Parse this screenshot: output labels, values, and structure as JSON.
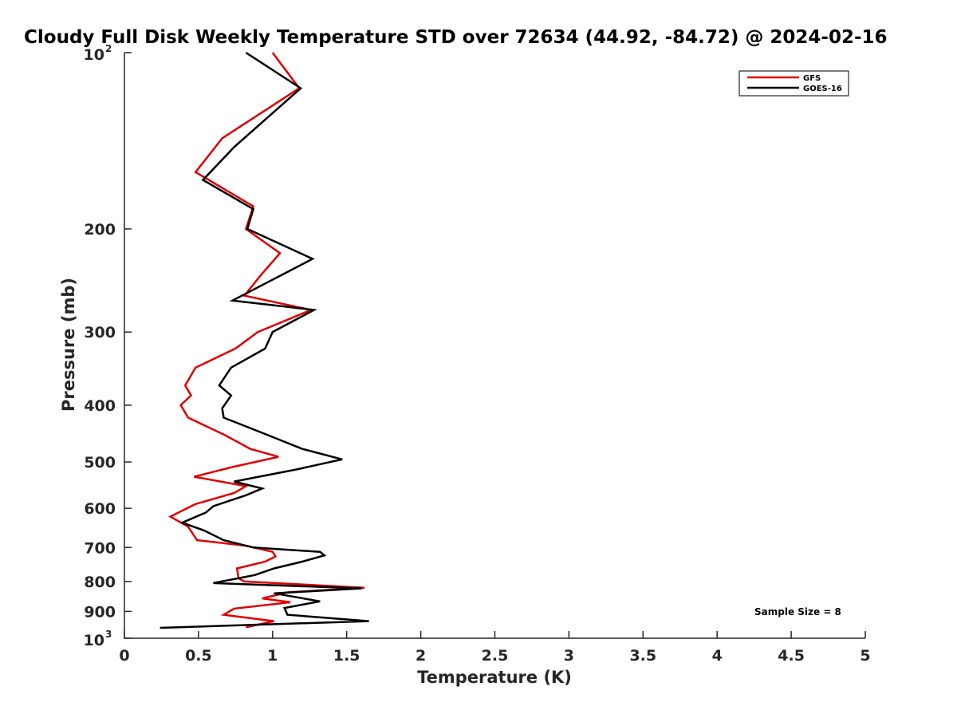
{
  "chart_data": {
    "type": "line",
    "title": "Cloudy Full Disk Weekly Temperature STD over 72634 (44.92, -84.72) @ 2024-02-16",
    "xlabel": "Temperature (K)",
    "ylabel": "Pressure (mb)",
    "xlim": [
      0,
      5
    ],
    "ylim": [
      100,
      1000
    ],
    "y_scale": "log",
    "y_reversed": true,
    "grid": false,
    "legend_position": "top-right",
    "x_ticks": [
      "0",
      "0.5",
      "1",
      "1.5",
      "2",
      "2.5",
      "3",
      "3.5",
      "4",
      "4.5",
      "5"
    ],
    "y_ticks": [
      {
        "value": 100,
        "base": "10",
        "exp": "2"
      },
      {
        "value": 200,
        "label": "200"
      },
      {
        "value": 300,
        "label": "300"
      },
      {
        "value": 400,
        "label": "400"
      },
      {
        "value": 500,
        "label": "500"
      },
      {
        "value": 600,
        "label": "600"
      },
      {
        "value": 700,
        "label": "700"
      },
      {
        "value": 800,
        "label": "800"
      },
      {
        "value": 900,
        "label": "900"
      },
      {
        "value": 1000,
        "base": "10",
        "exp": "3"
      }
    ],
    "annotation": "Sample Size = 8",
    "series": [
      {
        "name": "GFS",
        "color": "#e00000",
        "points": [
          [
            1.0,
            100
          ],
          [
            1.18,
            115
          ],
          [
            0.66,
            140
          ],
          [
            0.48,
            160
          ],
          [
            0.87,
            183
          ],
          [
            0.82,
            200
          ],
          [
            1.05,
            220
          ],
          [
            0.92,
            240
          ],
          [
            0.81,
            260
          ],
          [
            1.26,
            275
          ],
          [
            0.9,
            300
          ],
          [
            0.75,
            320
          ],
          [
            0.48,
            345
          ],
          [
            0.41,
            370
          ],
          [
            0.45,
            385
          ],
          [
            0.38,
            400
          ],
          [
            0.43,
            420
          ],
          [
            0.68,
            450
          ],
          [
            0.85,
            475
          ],
          [
            1.04,
            490
          ],
          [
            0.73,
            510
          ],
          [
            0.47,
            530
          ],
          [
            0.82,
            550
          ],
          [
            0.74,
            565
          ],
          [
            0.48,
            590
          ],
          [
            0.31,
            620
          ],
          [
            0.43,
            645
          ],
          [
            0.49,
            680
          ],
          [
            0.82,
            695
          ],
          [
            1.0,
            712
          ],
          [
            1.02,
            725
          ],
          [
            0.95,
            740
          ],
          [
            0.76,
            760
          ],
          [
            0.77,
            790
          ],
          [
            0.81,
            800
          ],
          [
            1.62,
            820
          ],
          [
            1.1,
            835
          ],
          [
            0.93,
            855
          ],
          [
            1.12,
            868
          ],
          [
            0.74,
            890
          ],
          [
            0.67,
            912
          ],
          [
            1.01,
            935
          ],
          [
            0.82,
            958
          ]
        ]
      },
      {
        "name": "GOES-16",
        "color": "#000000",
        "points": [
          [
            0.82,
            100
          ],
          [
            1.19,
            115
          ],
          [
            0.74,
            145
          ],
          [
            0.53,
            165
          ],
          [
            0.87,
            185
          ],
          [
            0.83,
            200
          ],
          [
            1.27,
            225
          ],
          [
            0.73,
            265
          ],
          [
            1.28,
            275
          ],
          [
            1.0,
            300
          ],
          [
            0.95,
            320
          ],
          [
            0.72,
            345
          ],
          [
            0.64,
            370
          ],
          [
            0.72,
            385
          ],
          [
            0.66,
            405
          ],
          [
            0.67,
            420
          ],
          [
            0.97,
            450
          ],
          [
            1.2,
            475
          ],
          [
            1.47,
            495
          ],
          [
            1.16,
            515
          ],
          [
            0.74,
            540
          ],
          [
            0.93,
            555
          ],
          [
            0.82,
            570
          ],
          [
            0.6,
            595
          ],
          [
            0.55,
            610
          ],
          [
            0.39,
            635
          ],
          [
            0.54,
            655
          ],
          [
            0.67,
            680
          ],
          [
            0.87,
            700
          ],
          [
            1.32,
            712
          ],
          [
            1.35,
            722
          ],
          [
            1.2,
            740
          ],
          [
            1.01,
            760
          ],
          [
            0.88,
            780
          ],
          [
            0.6,
            805
          ],
          [
            1.6,
            822
          ],
          [
            1.01,
            838
          ],
          [
            1.32,
            865
          ],
          [
            1.08,
            888
          ],
          [
            1.1,
            912
          ],
          [
            1.65,
            935
          ],
          [
            0.24,
            960
          ]
        ]
      }
    ]
  }
}
